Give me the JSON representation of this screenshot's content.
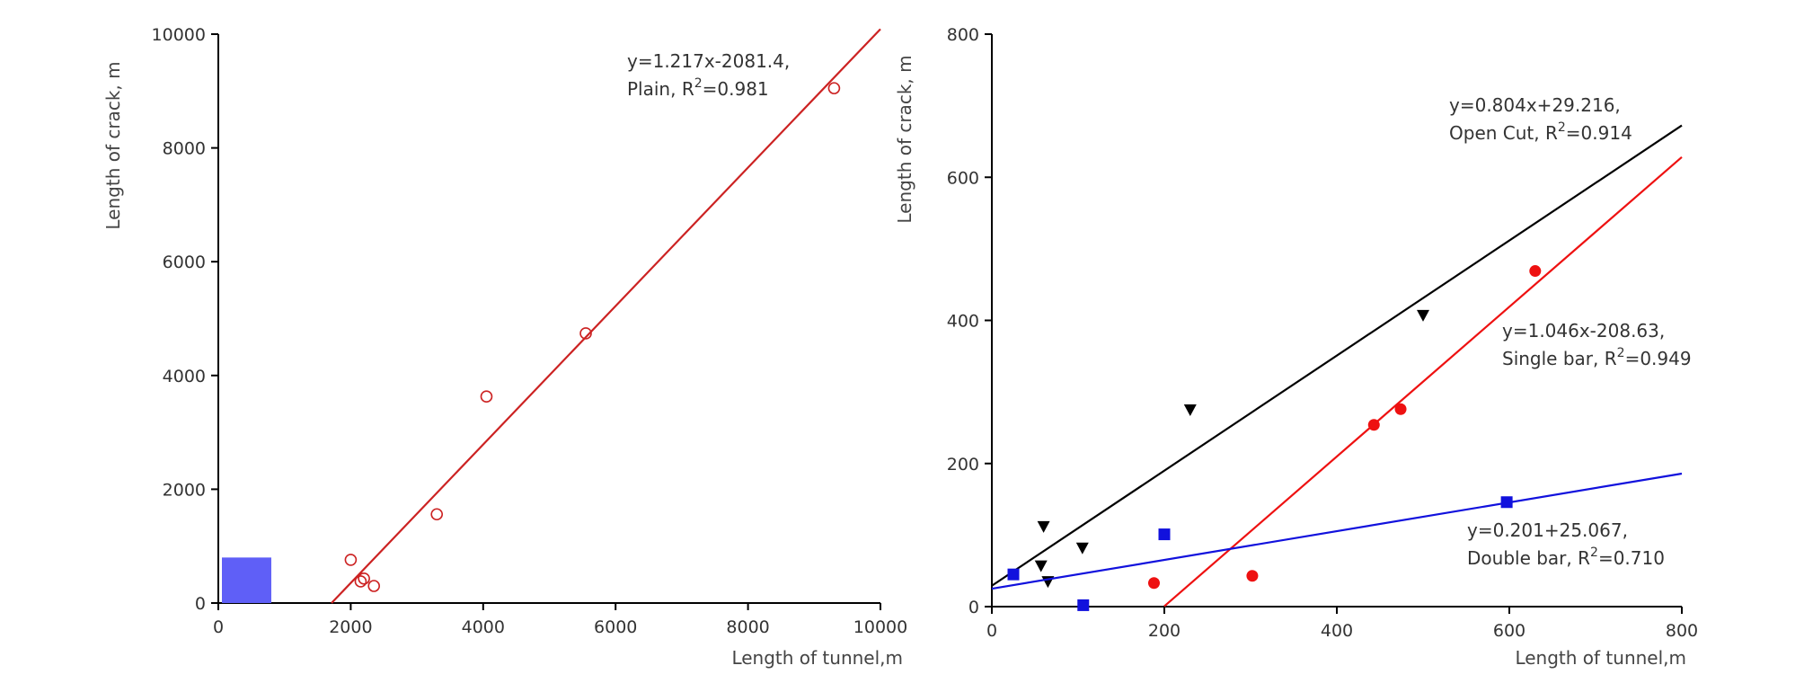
{
  "chart_data": [
    {
      "type": "scatter",
      "xlabel": "Length of tunnel,m",
      "ylabel": "Length of crack, m",
      "xlim": [
        0,
        10000
      ],
      "ylim": [
        0,
        10000
      ],
      "xticks": [
        "0",
        "2000",
        "4000",
        "6000",
        "8000",
        "10000"
      ],
      "yticks": [
        "0",
        "2000",
        "4000",
        "6000",
        "8000",
        "10000"
      ],
      "grid": false,
      "inset_region": {
        "x": [
          0,
          800
        ],
        "y": [
          0,
          800
        ],
        "color": "#5f5ff7"
      },
      "series": [
        {
          "marker": "open-circle",
          "color": "#cc2222",
          "points": [
            [
              2000,
              760
            ],
            [
              2150,
              380
            ],
            [
              2200,
              430
            ],
            [
              2350,
              300
            ],
            [
              3300,
              1560
            ],
            [
              4050,
              3630
            ],
            [
              5550,
              4740
            ],
            [
              9300,
              9050
            ]
          ],
          "fit": {
            "slope": 1.217,
            "intercept": -2081.4,
            "x_range": [
              1710,
              10000
            ]
          },
          "annotation": {
            "line1": "y=1.217x-2081.4,",
            "line2_prefix": "Plain, R",
            "sup": "2",
            "line2_suffix": "=0.981"
          }
        }
      ]
    },
    {
      "type": "scatter",
      "xlabel": "Length of tunnel,m",
      "ylabel": "Length of crack, m",
      "xlim": [
        0,
        800
      ],
      "ylim": [
        0,
        800
      ],
      "xticks": [
        "0",
        "200",
        "400",
        "600",
        "800"
      ],
      "yticks": [
        "0",
        "200",
        "400",
        "600",
        "800"
      ],
      "grid": false,
      "series": [
        {
          "marker": "down-triangle",
          "color": "#000000",
          "points": [
            [
              60,
              112
            ],
            [
              57,
              57
            ],
            [
              65,
              35
            ],
            [
              105,
              82
            ],
            [
              230,
              275
            ],
            [
              500,
              407
            ]
          ],
          "fit": {
            "slope": 0.804,
            "intercept": 29.216,
            "x_range": [
              0,
              800
            ]
          },
          "annotation": {
            "line1": "y=0.804x+29.216,",
            "line2_prefix": "Open Cut, R",
            "sup": "2",
            "line2_suffix": "=0.914"
          }
        },
        {
          "marker": "filled-circle",
          "color": "#ee1111",
          "points": [
            [
              188,
              33
            ],
            [
              302,
              43
            ],
            [
              443,
              254
            ],
            [
              474,
              276
            ],
            [
              630,
              469
            ]
          ],
          "fit": {
            "slope": 1.046,
            "intercept": -208.63,
            "x_range": [
              200,
              800
            ]
          },
          "annotation": {
            "line1": "y=1.046x-208.63,",
            "line2_prefix": "Single bar, R",
            "sup": "2",
            "line2_suffix": "=0.949"
          }
        },
        {
          "marker": "filled-square",
          "color": "#1111dd",
          "points": [
            [
              25,
              45
            ],
            [
              106,
              2
            ],
            [
              200,
              101
            ],
            [
              597,
              146
            ]
          ],
          "fit": {
            "slope": 0.201,
            "intercept": 25.067,
            "x_range": [
              0,
              800
            ]
          },
          "annotation": {
            "line1": "y=0.201+25.067,",
            "line2_prefix": "Double bar, R",
            "sup": "2",
            "line2_suffix": "=0.710"
          }
        }
      ]
    }
  ]
}
